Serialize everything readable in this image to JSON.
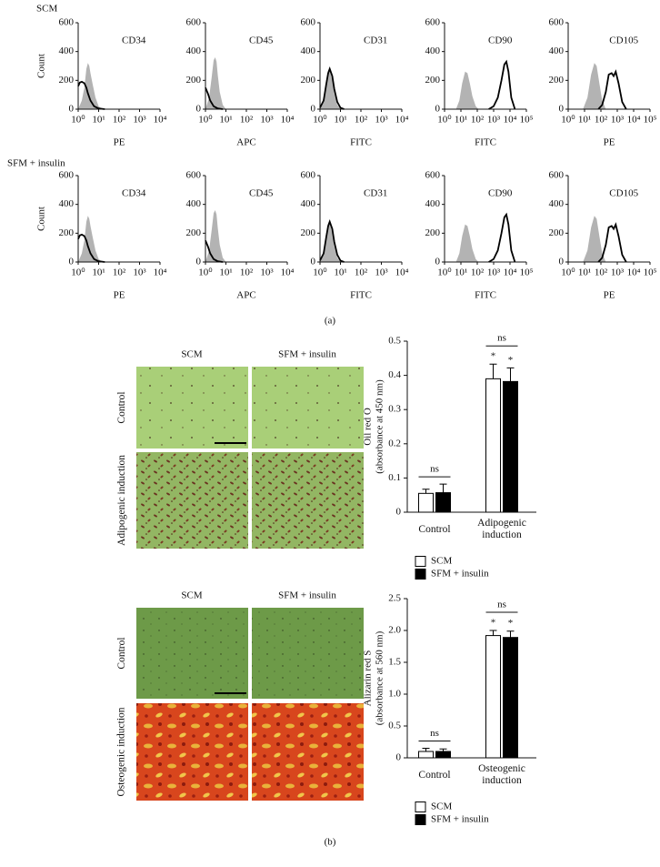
{
  "panel_labels": [
    "(a)",
    "(b)"
  ],
  "row_labels": [
    "SCM",
    "SFM + insulin"
  ],
  "micrographs": [
    {
      "columns": [
        "SCM",
        "SFM + insulin"
      ],
      "rows": [
        "Control",
        "Adipogenic induction"
      ]
    },
    {
      "columns": [
        "SCM",
        "SFM + insulin"
      ],
      "rows": [
        "Control",
        "Osteogenic induction"
      ]
    }
  ],
  "chart_data": [
    {
      "type": "line",
      "title": "CD34",
      "xlabel": "PE",
      "ylabel": "Count",
      "xscale": "log",
      "xlim": [
        1,
        10000
      ],
      "xticks": [
        {
          "value": 1,
          "label": "10⁰"
        },
        {
          "value": 10,
          "label": "10¹"
        },
        {
          "value": 100,
          "label": "10²"
        },
        {
          "value": 1000,
          "label": "10³"
        },
        {
          "value": 10000,
          "label": "10⁴"
        }
      ],
      "ylim": [
        0,
        600
      ],
      "yticks": [
        0,
        200,
        400,
        600
      ],
      "series": [
        {
          "color": "#b3b3b3",
          "fill": true,
          "x": [
            1,
            1.5,
            2,
            2.5,
            3,
            3.5,
            4,
            5,
            7,
            10,
            15
          ],
          "values": [
            0,
            60,
            150,
            280,
            320,
            300,
            250,
            180,
            80,
            20,
            0
          ]
        },
        {
          "color": "#000000",
          "fill": false,
          "x": [
            1,
            1.2,
            1.5,
            2,
            2.5,
            3,
            4,
            6,
            10,
            20
          ],
          "values": [
            160,
            185,
            190,
            180,
            150,
            110,
            60,
            20,
            5,
            0
          ]
        }
      ]
    },
    {
      "type": "line",
      "title": "CD45",
      "xlabel": "APC",
      "xscale": "log",
      "xlim": [
        1,
        10000
      ],
      "xticks": [
        {
          "value": 1,
          "label": "10⁰"
        },
        {
          "value": 10,
          "label": "10¹"
        },
        {
          "value": 100,
          "label": "10²"
        },
        {
          "value": 1000,
          "label": "10³"
        },
        {
          "value": 10000,
          "label": "10⁴"
        }
      ],
      "ylim": [
        0,
        600
      ],
      "yticks": [
        0,
        200,
        400,
        600
      ],
      "series": [
        {
          "color": "#b3b3b3",
          "fill": true,
          "x": [
            1,
            1.5,
            2,
            2.5,
            3,
            3.5,
            4,
            5,
            7,
            10
          ],
          "values": [
            0,
            80,
            220,
            340,
            360,
            330,
            240,
            120,
            30,
            0
          ]
        },
        {
          "color": "#000000",
          "fill": false,
          "x": [
            1,
            1.3,
            1.7,
            2.5,
            4,
            7
          ],
          "values": [
            150,
            110,
            60,
            20,
            5,
            0
          ]
        }
      ]
    },
    {
      "type": "line",
      "title": "CD31",
      "xlabel": "FITC",
      "xscale": "log",
      "xlim": [
        1,
        10000
      ],
      "xticks": [
        {
          "value": 1,
          "label": "10⁰"
        },
        {
          "value": 10,
          "label": "10¹"
        },
        {
          "value": 100,
          "label": "10²"
        },
        {
          "value": 1000,
          "label": "10³"
        },
        {
          "value": 10000,
          "label": "10⁴"
        }
      ],
      "ylim": [
        0,
        600
      ],
      "yticks": [
        0,
        200,
        400,
        600
      ],
      "series": [
        {
          "color": "#b3b3b3",
          "fill": true,
          "x": [
            1,
            1.5,
            2,
            2.5,
            3,
            4,
            5,
            7,
            10
          ],
          "values": [
            0,
            80,
            200,
            270,
            280,
            200,
            110,
            30,
            0
          ]
        },
        {
          "color": "#000000",
          "fill": false,
          "x": [
            1,
            1.5,
            2,
            2.5,
            3,
            4,
            5,
            7,
            10,
            15
          ],
          "values": [
            10,
            60,
            170,
            250,
            280,
            230,
            140,
            50,
            10,
            0
          ]
        }
      ]
    },
    {
      "type": "line",
      "title": "CD90",
      "xlabel": "FITC",
      "xscale": "log",
      "xlim": [
        1,
        100000
      ],
      "xticks": [
        {
          "value": 1,
          "label": "10⁰"
        },
        {
          "value": 10,
          "label": "10¹"
        },
        {
          "value": 100,
          "label": "10²"
        },
        {
          "value": 1000,
          "label": "10³"
        },
        {
          "value": 10000,
          "label": "10⁴"
        },
        {
          "value": 100000,
          "label": "10⁵"
        }
      ],
      "ylim": [
        0,
        600
      ],
      "yticks": [
        0,
        200,
        400,
        600
      ],
      "series": [
        {
          "color": "#b3b3b3",
          "fill": true,
          "x": [
            5,
            8,
            12,
            18,
            25,
            35,
            50,
            80,
            120
          ],
          "values": [
            0,
            60,
            180,
            260,
            250,
            180,
            90,
            20,
            0
          ]
        },
        {
          "color": "#000000",
          "fill": false,
          "x": [
            500,
            1000,
            1800,
            3000,
            4500,
            6000,
            8000,
            12000,
            20000
          ],
          "values": [
            0,
            20,
            80,
            200,
            310,
            330,
            260,
            80,
            0
          ]
        }
      ]
    },
    {
      "type": "line",
      "title": "CD105",
      "xlabel": "PE",
      "xscale": "log",
      "xlim": [
        1,
        100000
      ],
      "xticks": [
        {
          "value": 1,
          "label": "10⁰"
        },
        {
          "value": 10,
          "label": "10¹"
        },
        {
          "value": 100,
          "label": "10²"
        },
        {
          "value": 1000,
          "label": "10³"
        },
        {
          "value": 10000,
          "label": "10⁴"
        },
        {
          "value": 100000,
          "label": "10⁵"
        }
      ],
      "ylim": [
        0,
        600
      ],
      "yticks": [
        0,
        200,
        400,
        600
      ],
      "series": [
        {
          "color": "#b3b3b3",
          "fill": true,
          "x": [
            8,
            15,
            25,
            40,
            55,
            80,
            120,
            200
          ],
          "values": [
            0,
            80,
            240,
            320,
            300,
            180,
            60,
            0
          ]
        },
        {
          "color": "#000000",
          "fill": false,
          "x": [
            70,
            120,
            200,
            300,
            450,
            600,
            800,
            1200,
            2000,
            3500
          ],
          "values": [
            0,
            30,
            120,
            240,
            250,
            230,
            260,
            180,
            50,
            0
          ]
        }
      ]
    },
    {
      "type": "line",
      "title": "CD34",
      "xlabel": "PE",
      "ylabel": "Count",
      "xscale": "log",
      "xlim": [
        1,
        10000
      ],
      "xticks": [
        {
          "value": 1,
          "label": "10⁰"
        },
        {
          "value": 10,
          "label": "10¹"
        },
        {
          "value": 100,
          "label": "10²"
        },
        {
          "value": 1000,
          "label": "10³"
        },
        {
          "value": 10000,
          "label": "10⁴"
        }
      ],
      "ylim": [
        0,
        600
      ],
      "yticks": [
        0,
        200,
        400,
        600
      ],
      "series": [
        {
          "color": "#b3b3b3",
          "fill": true,
          "x": [
            1,
            1.5,
            2,
            2.5,
            3,
            3.5,
            4,
            5,
            7,
            10,
            15
          ],
          "values": [
            0,
            60,
            150,
            280,
            320,
            300,
            250,
            180,
            80,
            20,
            0
          ]
        },
        {
          "color": "#000000",
          "fill": false,
          "x": [
            1,
            1.2,
            1.5,
            2,
            2.5,
            3,
            4,
            6,
            10,
            20
          ],
          "values": [
            160,
            185,
            190,
            180,
            150,
            110,
            60,
            20,
            5,
            0
          ]
        }
      ]
    },
    {
      "type": "line",
      "title": "CD45",
      "xlabel": "APC",
      "xscale": "log",
      "xlim": [
        1,
        10000
      ],
      "xticks": [
        {
          "value": 1,
          "label": "10⁰"
        },
        {
          "value": 10,
          "label": "10¹"
        },
        {
          "value": 100,
          "label": "10²"
        },
        {
          "value": 1000,
          "label": "10³"
        },
        {
          "value": 10000,
          "label": "10⁴"
        }
      ],
      "ylim": [
        0,
        600
      ],
      "yticks": [
        0,
        200,
        400,
        600
      ],
      "series": [
        {
          "color": "#b3b3b3",
          "fill": true,
          "x": [
            1,
            1.5,
            2,
            2.5,
            3,
            3.5,
            4,
            5,
            7,
            10
          ],
          "values": [
            0,
            80,
            220,
            340,
            360,
            330,
            240,
            120,
            30,
            0
          ]
        },
        {
          "color": "#000000",
          "fill": false,
          "x": [
            1,
            1.3,
            1.7,
            2.5,
            4,
            7
          ],
          "values": [
            150,
            110,
            60,
            20,
            5,
            0
          ]
        }
      ]
    },
    {
      "type": "line",
      "title": "CD31",
      "xlabel": "FITC",
      "xscale": "log",
      "xlim": [
        1,
        10000
      ],
      "xticks": [
        {
          "value": 1,
          "label": "10⁰"
        },
        {
          "value": 10,
          "label": "10¹"
        },
        {
          "value": 100,
          "label": "10²"
        },
        {
          "value": 1000,
          "label": "10³"
        },
        {
          "value": 10000,
          "label": "10⁴"
        }
      ],
      "ylim": [
        0,
        600
      ],
      "yticks": [
        0,
        200,
        400,
        600
      ],
      "series": [
        {
          "color": "#b3b3b3",
          "fill": true,
          "x": [
            1,
            1.5,
            2,
            2.5,
            3,
            4,
            5,
            7,
            10
          ],
          "values": [
            0,
            80,
            200,
            270,
            280,
            200,
            110,
            30,
            0
          ]
        },
        {
          "color": "#000000",
          "fill": false,
          "x": [
            1,
            1.5,
            2,
            2.5,
            3,
            4,
            5,
            7,
            10,
            15
          ],
          "values": [
            10,
            60,
            170,
            250,
            280,
            230,
            140,
            50,
            10,
            0
          ]
        }
      ]
    },
    {
      "type": "line",
      "title": "CD90",
      "xlabel": "FITC",
      "xscale": "log",
      "xlim": [
        1,
        100000
      ],
      "xticks": [
        {
          "value": 1,
          "label": "10⁰"
        },
        {
          "value": 10,
          "label": "10¹"
        },
        {
          "value": 100,
          "label": "10²"
        },
        {
          "value": 1000,
          "label": "10³"
        },
        {
          "value": 10000,
          "label": "10⁴"
        },
        {
          "value": 100000,
          "label": "10⁵"
        }
      ],
      "ylim": [
        0,
        600
      ],
      "yticks": [
        0,
        200,
        400,
        600
      ],
      "series": [
        {
          "color": "#b3b3b3",
          "fill": true,
          "x": [
            5,
            8,
            12,
            18,
            25,
            35,
            50,
            80,
            120
          ],
          "values": [
            0,
            60,
            180,
            260,
            250,
            180,
            90,
            20,
            0
          ]
        },
        {
          "color": "#000000",
          "fill": false,
          "x": [
            500,
            1000,
            1800,
            3000,
            4500,
            6000,
            8000,
            12000,
            20000
          ],
          "values": [
            0,
            20,
            80,
            200,
            310,
            330,
            260,
            80,
            0
          ]
        }
      ]
    },
    {
      "type": "line",
      "title": "CD105",
      "xlabel": "PE",
      "xscale": "log",
      "xlim": [
        1,
        100000
      ],
      "xticks": [
        {
          "value": 1,
          "label": "10⁰"
        },
        {
          "value": 10,
          "label": "10¹"
        },
        {
          "value": 100,
          "label": "10²"
        },
        {
          "value": 1000,
          "label": "10³"
        },
        {
          "value": 10000,
          "label": "10⁴"
        },
        {
          "value": 100000,
          "label": "10⁵"
        }
      ],
      "ylim": [
        0,
        600
      ],
      "yticks": [
        0,
        200,
        400,
        600
      ],
      "series": [
        {
          "color": "#b3b3b3",
          "fill": true,
          "x": [
            8,
            15,
            25,
            40,
            55,
            80,
            120,
            200
          ],
          "values": [
            0,
            80,
            240,
            320,
            300,
            180,
            60,
            0
          ]
        },
        {
          "color": "#000000",
          "fill": false,
          "x": [
            70,
            120,
            200,
            300,
            450,
            600,
            800,
            1200,
            2000,
            3500
          ],
          "values": [
            0,
            30,
            120,
            240,
            250,
            230,
            260,
            180,
            50,
            0
          ]
        }
      ]
    },
    {
      "type": "bar",
      "ylabel": [
        "Oil red O",
        "(absorbance at 450 nm)"
      ],
      "categories": [
        "Control",
        "Adipogenic induction"
      ],
      "ylim": [
        0,
        0.5
      ],
      "yticks": [
        0,
        0.1,
        0.2,
        0.3,
        0.4,
        0.5
      ],
      "group_labels": [
        "ns",
        "ns"
      ],
      "series": [
        {
          "name": "SCM",
          "color": "#ffffff",
          "values": [
            0.055,
            0.39
          ],
          "errors": [
            0.012,
            0.043
          ],
          "markers": [
            null,
            "*"
          ]
        },
        {
          "name": "SFM + insulin",
          "color": "#000000",
          "values": [
            0.057,
            0.382
          ],
          "errors": [
            0.025,
            0.04
          ],
          "markers": [
            null,
            "*"
          ]
        }
      ]
    },
    {
      "type": "bar",
      "ylabel": [
        "Alizarin red S",
        "(absorbance at 560 nm)"
      ],
      "categories": [
        "Control",
        "Osteogenic induction"
      ],
      "ylim": [
        0,
        2.5
      ],
      "yticks": [
        0,
        0.5,
        {
          "value": 1,
          "label": "1.0"
        },
        1.5,
        {
          "value": 2,
          "label": "2.0"
        },
        2.5
      ],
      "group_labels": [
        "ns",
        "ns"
      ],
      "series": [
        {
          "name": "SCM",
          "color": "#ffffff",
          "values": [
            0.1,
            1.92
          ],
          "errors": [
            0.05,
            0.08
          ],
          "markers": [
            null,
            "*"
          ]
        },
        {
          "name": "SFM + insulin",
          "color": "#000000",
          "values": [
            0.1,
            1.89
          ],
          "errors": [
            0.04,
            0.1
          ],
          "markers": [
            null,
            "*"
          ]
        }
      ]
    }
  ]
}
